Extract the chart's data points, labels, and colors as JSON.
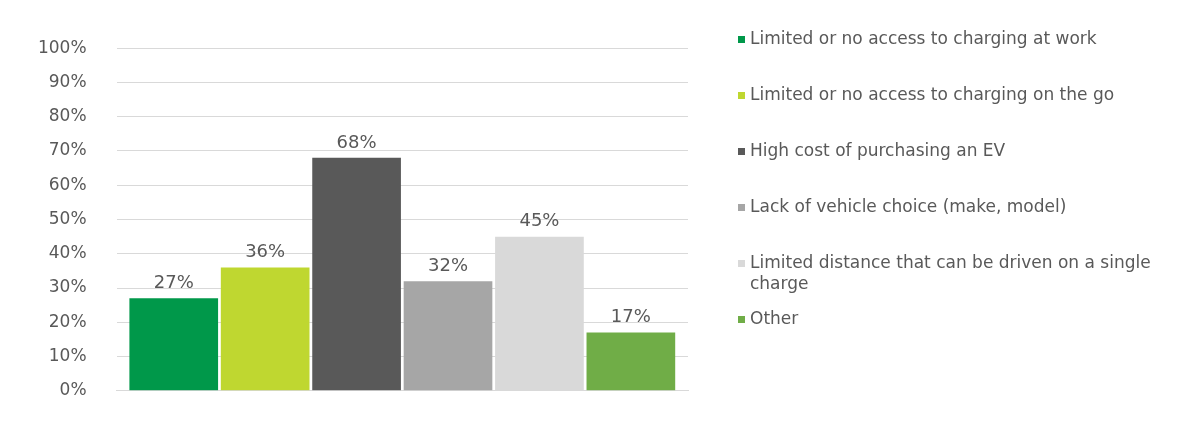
{
  "chart_data": {
    "type": "bar",
    "categories": [
      null
    ],
    "series": [
      {
        "name": "Limited or no access to charging at work",
        "color": "#00984a",
        "values": [
          27
        ],
        "value_labels": [
          "27%"
        ]
      },
      {
        "name": "Limited or no access to charging on the go",
        "color": "#bfd730",
        "values": [
          36
        ],
        "value_labels": [
          "36%"
        ]
      },
      {
        "name": "High cost of purchasing an EV",
        "color": "#595959",
        "values": [
          68
        ],
        "value_labels": [
          "68%"
        ]
      },
      {
        "name": "Lack of vehicle choice (make, model)",
        "color": "#a6a6a6",
        "values": [
          32
        ],
        "value_labels": [
          "32%"
        ]
      },
      {
        "name": "Limited distance that can be driven on a single charge",
        "color": "#d9d9d9",
        "values": [
          45
        ],
        "value_labels": [
          "45%"
        ]
      },
      {
        "name": "Other",
        "color": "#70ad47",
        "values": [
          17
        ],
        "value_labels": [
          "17%"
        ]
      }
    ],
    "ylim": [
      0,
      100
    ],
    "yticks": [
      {
        "value": 0,
        "label": "0%"
      },
      {
        "value": 10,
        "label": "10%"
      },
      {
        "value": 20,
        "label": "20%"
      },
      {
        "value": 30,
        "label": "30%"
      },
      {
        "value": 40,
        "label": "40%"
      },
      {
        "value": 50,
        "label": "50%"
      },
      {
        "value": 60,
        "label": "60%"
      },
      {
        "value": 70,
        "label": "70%"
      },
      {
        "value": 80,
        "label": "80%"
      },
      {
        "value": 90,
        "label": "90%"
      },
      {
        "value": 100,
        "label": "100%"
      }
    ],
    "grid": "y",
    "legend": "right"
  }
}
